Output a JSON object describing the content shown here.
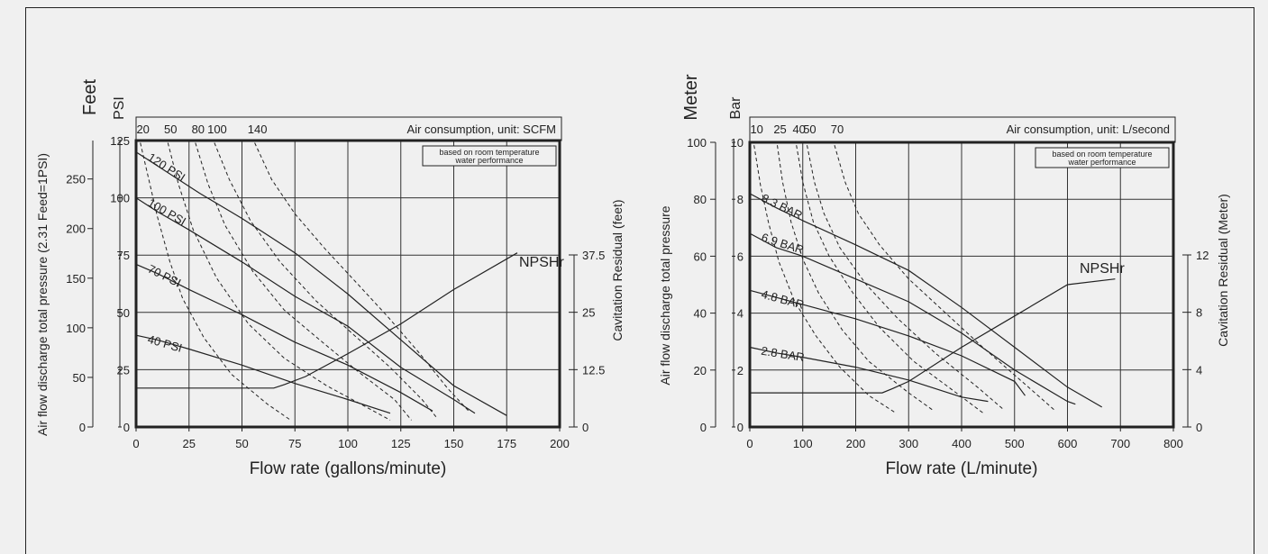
{
  "chart_data": [
    {
      "type": "line",
      "primary_axis_title_unit1": "Feet",
      "primary_axis_title_unit2": "PSI",
      "ylabel": "Air flow discharge total pressure (2.31 Feed=1PSI)",
      "xlabel": "Flow rate (gallons/minute)",
      "right_axis_label": "Cavitation Residual (feet)",
      "air_consumption_label": "Air consumption, unit: SCFM",
      "note_line1": "based on room temperature",
      "note_line2": "water performance",
      "xlim": [
        0,
        200
      ],
      "ylim": [
        0,
        125
      ],
      "x_ticks": [
        "0",
        "25",
        "50",
        "75",
        "100",
        "125",
        "150",
        "175",
        "200"
      ],
      "y_ticks_psi": [
        "0",
        "25",
        "50",
        "75",
        "100",
        "125"
      ],
      "y_ticks_feet": [
        "0",
        "50",
        "100",
        "150",
        "200",
        "250"
      ],
      "right_ticks": [
        "0",
        "12.5",
        "25",
        "37.5"
      ],
      "air_ticks": [
        "20",
        "50",
        "80",
        "100",
        "140"
      ],
      "npsh_label": "NPSHr",
      "series": [
        {
          "name": "120 PSI",
          "points": [
            [
              0,
              120
            ],
            [
              10,
              114
            ],
            [
              30,
              102
            ],
            [
              50,
              91
            ],
            [
              75,
              76
            ],
            [
              100,
              58
            ],
            [
              125,
              38
            ],
            [
              150,
              18
            ],
            [
              175,
              5
            ]
          ]
        },
        {
          "name": "100 PSI",
          "points": [
            [
              0,
              100
            ],
            [
              10,
              94
            ],
            [
              25,
              86
            ],
            [
              50,
              72
            ],
            [
              75,
              57
            ],
            [
              100,
              44
            ],
            [
              125,
              26
            ],
            [
              150,
              12
            ],
            [
              160,
              6
            ]
          ]
        },
        {
          "name": "70 PSI",
          "points": [
            [
              0,
              71
            ],
            [
              10,
              67
            ],
            [
              25,
              60
            ],
            [
              50,
              49
            ],
            [
              75,
              37
            ],
            [
              100,
              27
            ],
            [
              125,
              15
            ],
            [
              140,
              7
            ]
          ]
        },
        {
          "name": "40 PSI",
          "points": [
            [
              0,
              40
            ],
            [
              10,
              38
            ],
            [
              25,
              34
            ],
            [
              50,
              27
            ],
            [
              75,
              19
            ],
            [
              100,
              12
            ],
            [
              120,
              6
            ]
          ]
        }
      ],
      "air_curves": [
        {
          "name": "20",
          "points": [
            [
              2,
              124
            ],
            [
              6,
              108
            ],
            [
              10,
              92
            ],
            [
              16,
              72
            ],
            [
              22,
              56
            ],
            [
              32,
              39
            ],
            [
              45,
              23
            ],
            [
              62,
              10
            ],
            [
              73,
              3
            ]
          ]
        },
        {
          "name": "50",
          "points": [
            [
              15,
              124
            ],
            [
              20,
              106
            ],
            [
              27,
              86
            ],
            [
              38,
              65
            ],
            [
              53,
              45
            ],
            [
              70,
              30
            ],
            [
              90,
              18
            ],
            [
              110,
              8
            ],
            [
              120,
              3
            ]
          ]
        },
        {
          "name": "80",
          "points": [
            [
              28,
              124
            ],
            [
              34,
              106
            ],
            [
              42,
              88
            ],
            [
              55,
              68
            ],
            [
              70,
              51
            ],
            [
              88,
              37
            ],
            [
              105,
              24
            ],
            [
              122,
              12
            ],
            [
              130,
              3
            ]
          ]
        },
        {
          "name": "100",
          "points": [
            [
              37,
              124
            ],
            [
              44,
              108
            ],
            [
              54,
              90
            ],
            [
              68,
              72
            ],
            [
              85,
              55
            ],
            [
              103,
              40
            ],
            [
              120,
              26
            ],
            [
              135,
              12
            ],
            [
              142,
              4
            ]
          ]
        },
        {
          "name": "140",
          "points": [
            [
              56,
              124
            ],
            [
              64,
              108
            ],
            [
              75,
              93
            ],
            [
              89,
              78
            ],
            [
              104,
              63
            ],
            [
              119,
              48
            ],
            [
              134,
              32
            ],
            [
              147,
              17
            ],
            [
              157,
              7
            ]
          ]
        }
      ],
      "npshr": {
        "points": [
          [
            0,
            17
          ],
          [
            65,
            17
          ],
          [
            70,
            18.5
          ],
          [
            80,
            22
          ],
          [
            100,
            32
          ],
          [
            125,
            45
          ],
          [
            150,
            60
          ],
          [
            180,
            76
          ]
        ]
      }
    },
    {
      "type": "line",
      "primary_axis_title_unit1": "Meter",
      "primary_axis_title_unit2": "Bar",
      "ylabel": "Air flow discharge total pressure",
      "xlabel": "Flow rate (L/minute)",
      "right_axis_label": "Cavitation Residual (Meter)",
      "air_consumption_label": "Air consumption, unit: L/second",
      "note_line1": "based on room temperature",
      "note_line2": "water performance",
      "xlim": [
        0,
        800
      ],
      "ylim": [
        0,
        10
      ],
      "x_ticks": [
        "0",
        "100",
        "200",
        "300",
        "400",
        "500",
        "600",
        "700",
        "800"
      ],
      "y_ticks_bar": [
        "0",
        "2",
        "4",
        "6",
        "8",
        "10"
      ],
      "y_ticks_meter": [
        "0",
        "20",
        "40",
        "60",
        "80",
        "100"
      ],
      "right_ticks": [
        "0",
        "4",
        "8",
        "12"
      ],
      "air_ticks": [
        "10",
        "25",
        "40",
        "50",
        "70"
      ],
      "npsh_label": "NPSHr",
      "series": [
        {
          "name": "8.3 BAR",
          "points": [
            [
              0,
              8.2
            ],
            [
              50,
              7.7
            ],
            [
              100,
              7.25
            ],
            [
              200,
              6.4
            ],
            [
              300,
              5.5
            ],
            [
              400,
              4.2
            ],
            [
              500,
              2.8
            ],
            [
              600,
              1.4
            ],
            [
              665,
              0.7
            ]
          ]
        },
        {
          "name": "6.9 BAR",
          "points": [
            [
              0,
              6.8
            ],
            [
              50,
              6.3
            ],
            [
              100,
              6.0
            ],
            [
              200,
              5.2
            ],
            [
              300,
              4.4
            ],
            [
              400,
              3.3
            ],
            [
              500,
              2.0
            ],
            [
              600,
              0.9
            ],
            [
              615,
              0.8
            ]
          ]
        },
        {
          "name": "4.8 BAR",
          "points": [
            [
              0,
              4.8
            ],
            [
              50,
              4.55
            ],
            [
              100,
              4.3
            ],
            [
              200,
              3.8
            ],
            [
              300,
              3.2
            ],
            [
              400,
              2.5
            ],
            [
              500,
              1.6
            ],
            [
              520,
              1.1
            ]
          ]
        },
        {
          "name": "2.8 BAR",
          "points": [
            [
              0,
              2.8
            ],
            [
              50,
              2.6
            ],
            [
              100,
              2.45
            ],
            [
              200,
              2.1
            ],
            [
              300,
              1.65
            ],
            [
              400,
              1.05
            ],
            [
              450,
              0.9
            ]
          ]
        }
      ],
      "air_curves": [
        {
          "name": "10",
          "points": [
            [
              8,
              9.9
            ],
            [
              20,
              8.5
            ],
            [
              35,
              7.2
            ],
            [
              55,
              5.8
            ],
            [
              85,
              4.4
            ],
            [
              125,
              3.2
            ],
            [
              170,
              2.1
            ],
            [
              225,
              1.1
            ],
            [
              275,
              0.5
            ]
          ]
        },
        {
          "name": "25",
          "points": [
            [
              52,
              9.9
            ],
            [
              62,
              8.6
            ],
            [
              78,
              7.2
            ],
            [
              100,
              5.9
            ],
            [
              130,
              4.7
            ],
            [
              175,
              3.4
            ],
            [
              225,
              2.3
            ],
            [
              300,
              1.2
            ],
            [
              345,
              0.6
            ]
          ]
        },
        {
          "name": "40",
          "points": [
            [
              88,
              9.9
            ],
            [
              100,
              8.6
            ],
            [
              120,
              7.2
            ],
            [
              150,
              6.0
            ],
            [
              195,
              4.7
            ],
            [
              245,
              3.5
            ],
            [
              310,
              2.3
            ],
            [
              390,
              1.2
            ],
            [
              440,
              0.5
            ]
          ]
        },
        {
          "name": "50",
          "points": [
            [
              108,
              9.9
            ],
            [
              122,
              8.6
            ],
            [
              140,
              7.5
            ],
            [
              170,
              6.3
            ],
            [
              220,
              5.0
            ],
            [
              280,
              3.8
            ],
            [
              350,
              2.6
            ],
            [
              430,
              1.4
            ],
            [
              480,
              0.6
            ]
          ]
        },
        {
          "name": "70",
          "points": [
            [
              160,
              9.9
            ],
            [
              180,
              8.6
            ],
            [
              205,
              7.5
            ],
            [
              245,
              6.4
            ],
            [
              300,
              5.2
            ],
            [
              370,
              4.0
            ],
            [
              440,
              2.8
            ],
            [
              520,
              1.5
            ],
            [
              575,
              0.6
            ]
          ]
        }
      ],
      "npshr": {
        "points": [
          [
            0,
            1.2
          ],
          [
            250,
            1.2
          ],
          [
            270,
            1.35
          ],
          [
            300,
            1.6
          ],
          [
            400,
            2.8
          ],
          [
            500,
            3.9
          ],
          [
            600,
            5.0
          ],
          [
            690,
            5.2
          ]
        ]
      }
    }
  ]
}
